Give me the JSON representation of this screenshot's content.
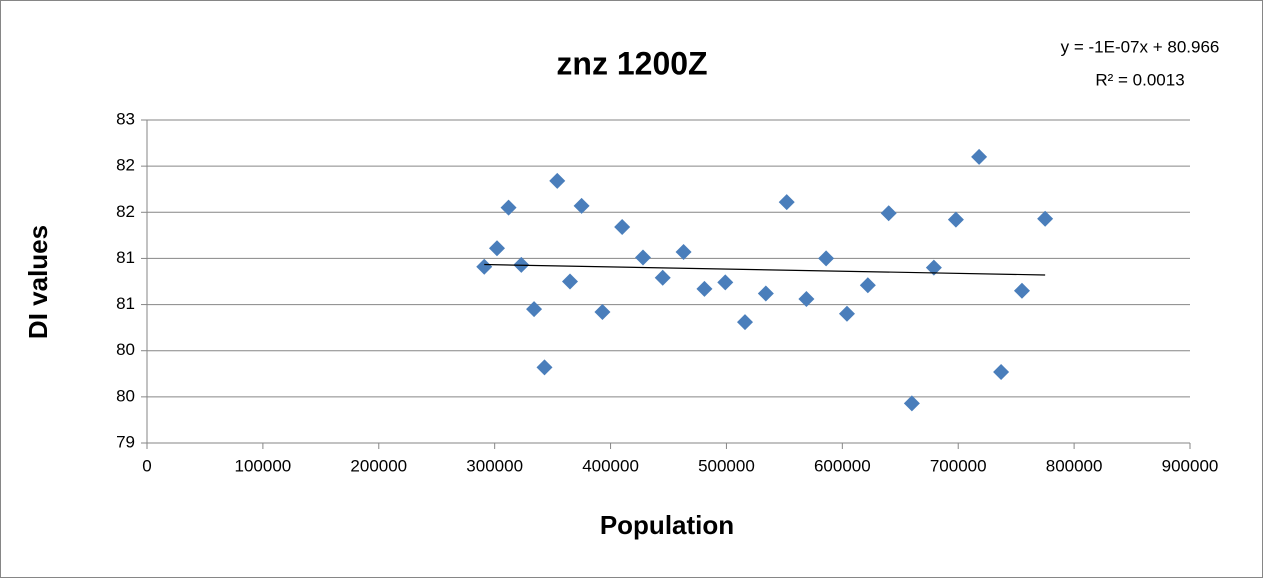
{
  "chart_data": {
    "type": "scatter",
    "title": "znz 1200Z",
    "annotations": [
      "y = -1E-07x + 80.966",
      "R² = 0.0013"
    ],
    "x_label": "Population",
    "y_label": "DI values",
    "color": "#4a7ebb",
    "trendline": true,
    "grid": true,
    "xlim": [
      0,
      900000
    ],
    "xticks": [
      0,
      100000,
      200000,
      300000,
      400000,
      500000,
      600000,
      700000,
      800000,
      900000
    ],
    "ylim": [
      79,
      82.5
    ],
    "yticks": [
      79,
      {
        "value": 79.5,
        "label": "80"
      },
      80,
      {
        "value": 80.5,
        "label": "81"
      },
      81,
      {
        "value": 81.5,
        "label": "82"
      },
      82,
      {
        "value": 82.5,
        "label": "83"
      }
    ],
    "x": [
      291000,
      302000,
      312000,
      323000,
      334000,
      343000,
      354000,
      365000,
      375000,
      393000,
      410000,
      428000,
      445000,
      463000,
      481000,
      499000,
      516000,
      534000,
      552000,
      569000,
      586000,
      604000,
      622000,
      640000,
      660000,
      679000,
      698000,
      718000,
      737000,
      755000,
      775000
    ],
    "values": [
      80.91,
      81.11,
      81.55,
      80.93,
      80.45,
      79.82,
      81.84,
      80.75,
      81.57,
      80.42,
      81.34,
      81.01,
      80.79,
      81.07,
      80.67,
      80.74,
      80.31,
      80.62,
      81.61,
      80.56,
      81.0,
      80.4,
      80.71,
      81.49,
      79.43,
      80.9,
      81.42,
      82.1,
      79.77,
      80.65,
      81.43
    ]
  }
}
